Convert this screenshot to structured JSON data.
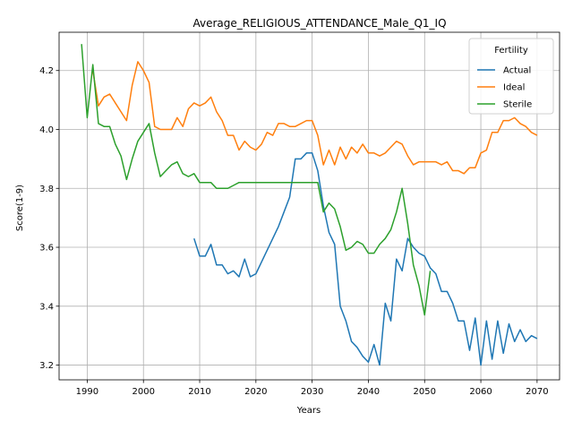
{
  "chart_data": {
    "type": "line",
    "title": "Average_RELIGIOUS_ATTENDANCE_Male_Q1_IQ",
    "xlabel": "Years",
    "ylabel": "Score(1-9)",
    "xlim": [
      1985,
      2074
    ],
    "ylim": [
      3.15,
      4.33
    ],
    "xticks": [
      1990,
      2000,
      2010,
      2020,
      2030,
      2040,
      2050,
      2060,
      2070
    ],
    "yticks": [
      3.2,
      3.4,
      3.6,
      3.8,
      4.0,
      4.2
    ],
    "ytick_labels": [
      "3.2",
      "3.4",
      "3.6",
      "3.8",
      "4.0",
      "4.2"
    ],
    "grid": true,
    "legend": {
      "title": "Fertility",
      "placement": "top-right"
    },
    "series": [
      {
        "name": "Actual",
        "color": "#1f77b4",
        "points": [
          [
            2009,
            3.63
          ],
          [
            2010,
            3.57
          ],
          [
            2011,
            3.57
          ],
          [
            2012,
            3.61
          ],
          [
            2013,
            3.54
          ],
          [
            2014,
            3.54
          ],
          [
            2015,
            3.51
          ],
          [
            2016,
            3.52
          ],
          [
            2017,
            3.5
          ],
          [
            2018,
            3.56
          ],
          [
            2019,
            3.5
          ],
          [
            2020,
            3.51
          ],
          [
            2021,
            3.55
          ],
          [
            2022,
            3.59
          ],
          [
            2023,
            3.63
          ],
          [
            2024,
            3.67
          ],
          [
            2025,
            3.72
          ],
          [
            2026,
            3.77
          ],
          [
            2027,
            3.9
          ],
          [
            2028,
            3.9
          ],
          [
            2029,
            3.92
          ],
          [
            2030,
            3.92
          ],
          [
            2031,
            3.86
          ],
          [
            2032,
            3.74
          ],
          [
            2033,
            3.65
          ],
          [
            2034,
            3.61
          ],
          [
            2035,
            3.4
          ],
          [
            2036,
            3.35
          ],
          [
            2037,
            3.28
          ],
          [
            2038,
            3.26
          ],
          [
            2039,
            3.23
          ],
          [
            2040,
            3.21
          ],
          [
            2041,
            3.27
          ],
          [
            2042,
            3.2
          ],
          [
            2043,
            3.41
          ],
          [
            2044,
            3.35
          ],
          [
            2045,
            3.56
          ],
          [
            2046,
            3.52
          ],
          [
            2047,
            3.63
          ],
          [
            2048,
            3.6
          ],
          [
            2049,
            3.58
          ],
          [
            2050,
            3.57
          ],
          [
            2051,
            3.53
          ],
          [
            2052,
            3.51
          ],
          [
            2053,
            3.45
          ],
          [
            2054,
            3.45
          ],
          [
            2055,
            3.41
          ],
          [
            2056,
            3.35
          ],
          [
            2057,
            3.35
          ],
          [
            2058,
            3.25
          ],
          [
            2059,
            3.36
          ],
          [
            2060,
            3.2
          ],
          [
            2061,
            3.35
          ],
          [
            2062,
            3.22
          ],
          [
            2063,
            3.35
          ],
          [
            2064,
            3.24
          ],
          [
            2065,
            3.34
          ],
          [
            2066,
            3.28
          ],
          [
            2067,
            3.32
          ],
          [
            2068,
            3.28
          ],
          [
            2069,
            3.3
          ],
          [
            2070,
            3.29
          ]
        ]
      },
      {
        "name": "Ideal",
        "color": "#ff7f0e",
        "points": [
          [
            1991,
            4.2
          ],
          [
            1992,
            4.08
          ],
          [
            1993,
            4.11
          ],
          [
            1994,
            4.12
          ],
          [
            1995,
            4.09
          ],
          [
            1996,
            4.06
          ],
          [
            1997,
            4.03
          ],
          [
            1998,
            4.15
          ],
          [
            1999,
            4.23
          ],
          [
            2000,
            4.2
          ],
          [
            2001,
            4.16
          ],
          [
            2002,
            4.01
          ],
          [
            2003,
            4.0
          ],
          [
            2004,
            4.0
          ],
          [
            2005,
            4.0
          ],
          [
            2006,
            4.04
          ],
          [
            2007,
            4.01
          ],
          [
            2008,
            4.07
          ],
          [
            2009,
            4.09
          ],
          [
            2010,
            4.08
          ],
          [
            2011,
            4.09
          ],
          [
            2012,
            4.11
          ],
          [
            2013,
            4.06
          ],
          [
            2014,
            4.03
          ],
          [
            2015,
            3.98
          ],
          [
            2016,
            3.98
          ],
          [
            2017,
            3.93
          ],
          [
            2018,
            3.96
          ],
          [
            2019,
            3.94
          ],
          [
            2020,
            3.93
          ],
          [
            2021,
            3.95
          ],
          [
            2022,
            3.99
          ],
          [
            2023,
            3.98
          ],
          [
            2024,
            4.02
          ],
          [
            2025,
            4.02
          ],
          [
            2026,
            4.01
          ],
          [
            2027,
            4.01
          ],
          [
            2028,
            4.02
          ],
          [
            2029,
            4.03
          ],
          [
            2030,
            4.03
          ],
          [
            2031,
            3.98
          ],
          [
            2032,
            3.88
          ],
          [
            2033,
            3.93
          ],
          [
            2034,
            3.88
          ],
          [
            2035,
            3.94
          ],
          [
            2036,
            3.9
          ],
          [
            2037,
            3.94
          ],
          [
            2038,
            3.92
          ],
          [
            2039,
            3.95
          ],
          [
            2040,
            3.92
          ],
          [
            2041,
            3.92
          ],
          [
            2042,
            3.91
          ],
          [
            2043,
            3.92
          ],
          [
            2044,
            3.94
          ],
          [
            2045,
            3.96
          ],
          [
            2046,
            3.95
          ],
          [
            2047,
            3.91
          ],
          [
            2048,
            3.88
          ],
          [
            2049,
            3.89
          ],
          [
            2050,
            3.89
          ],
          [
            2051,
            3.89
          ],
          [
            2052,
            3.89
          ],
          [
            2053,
            3.88
          ],
          [
            2054,
            3.89
          ],
          [
            2055,
            3.86
          ],
          [
            2056,
            3.86
          ],
          [
            2057,
            3.85
          ],
          [
            2058,
            3.87
          ],
          [
            2059,
            3.87
          ],
          [
            2060,
            3.92
          ],
          [
            2061,
            3.93
          ],
          [
            2062,
            3.99
          ],
          [
            2063,
            3.99
          ],
          [
            2064,
            4.03
          ],
          [
            2065,
            4.03
          ],
          [
            2066,
            4.04
          ],
          [
            2067,
            4.02
          ],
          [
            2068,
            4.01
          ],
          [
            2069,
            3.99
          ],
          [
            2070,
            3.98
          ]
        ]
      },
      {
        "name": "Sterile",
        "color": "#2ca02c",
        "points": [
          [
            1989,
            4.29
          ],
          [
            1990,
            4.04
          ],
          [
            1991,
            4.22
          ],
          [
            1992,
            4.02
          ],
          [
            1993,
            4.01
          ],
          [
            1994,
            4.01
          ],
          [
            1995,
            3.95
          ],
          [
            1996,
            3.91
          ],
          [
            1997,
            3.83
          ],
          [
            1998,
            3.9
          ],
          [
            1999,
            3.96
          ],
          [
            2000,
            3.99
          ],
          [
            2001,
            4.02
          ],
          [
            2002,
            3.92
          ],
          [
            2003,
            3.84
          ],
          [
            2004,
            3.86
          ],
          [
            2005,
            3.88
          ],
          [
            2006,
            3.89
          ],
          [
            2007,
            3.85
          ],
          [
            2008,
            3.84
          ],
          [
            2009,
            3.85
          ],
          [
            2010,
            3.82
          ],
          [
            2011,
            3.82
          ],
          [
            2012,
            3.82
          ],
          [
            2013,
            3.8
          ],
          [
            2014,
            3.8
          ],
          [
            2015,
            3.8
          ],
          [
            2016,
            3.81
          ],
          [
            2017,
            3.82
          ],
          [
            2018,
            3.82
          ],
          [
            2019,
            3.82
          ],
          [
            2020,
            3.82
          ],
          [
            2021,
            3.82
          ],
          [
            2022,
            3.82
          ],
          [
            2023,
            3.82
          ],
          [
            2024,
            3.82
          ],
          [
            2025,
            3.82
          ],
          [
            2026,
            3.82
          ],
          [
            2027,
            3.82
          ],
          [
            2028,
            3.82
          ],
          [
            2029,
            3.82
          ],
          [
            2030,
            3.82
          ],
          [
            2031,
            3.82
          ],
          [
            2032,
            3.72
          ],
          [
            2033,
            3.75
          ],
          [
            2034,
            3.73
          ],
          [
            2035,
            3.67
          ],
          [
            2036,
            3.59
          ],
          [
            2037,
            3.6
          ],
          [
            2038,
            3.62
          ],
          [
            2039,
            3.61
          ],
          [
            2040,
            3.58
          ],
          [
            2041,
            3.58
          ],
          [
            2042,
            3.61
          ],
          [
            2043,
            3.63
          ],
          [
            2044,
            3.66
          ],
          [
            2045,
            3.72
          ],
          [
            2046,
            3.8
          ],
          [
            2047,
            3.68
          ],
          [
            2048,
            3.54
          ],
          [
            2049,
            3.47
          ],
          [
            2050,
            3.37
          ],
          [
            2051,
            3.52
          ]
        ]
      }
    ]
  }
}
